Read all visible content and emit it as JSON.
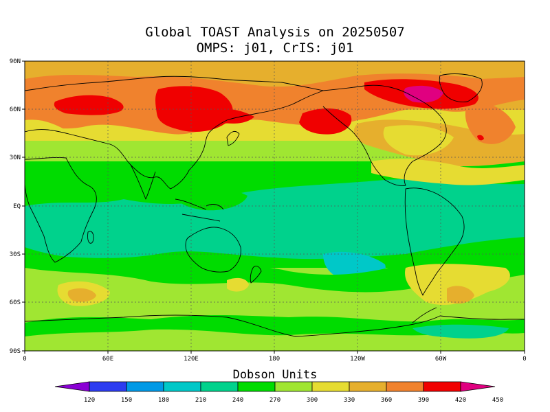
{
  "title": {
    "line1": "Global TOAST Analysis on 20250507",
    "line2": "OMPS: j01, CrIS: j01"
  },
  "axes": {
    "lat_labels": [
      "90N",
      "60N",
      "30N",
      "EQ",
      "30S",
      "60S",
      "90S"
    ],
    "lon_labels": [
      "0",
      "60E",
      "120E",
      "180",
      "120W",
      "60W",
      "0"
    ]
  },
  "colorbar": {
    "title": "Dobson Units",
    "tick_labels": [
      "120",
      "150",
      "180",
      "210",
      "240",
      "270",
      "300",
      "330",
      "360",
      "390",
      "420",
      "450"
    ],
    "colors": [
      "#8a00d4",
      "#2c3cf0",
      "#0099e6",
      "#00c8c8",
      "#00d28c",
      "#00dc00",
      "#a0e632",
      "#e6dc32",
      "#e6af2d",
      "#f0822d",
      "#f00000",
      "#e00080"
    ]
  },
  "ozone_levels": {
    "low_cyan": "#00c8c8",
    "teal": "#00d28c",
    "green": "#00dc00",
    "lime": "#a0e632",
    "yellow": "#e6dc32",
    "gold": "#e6af2d",
    "orange": "#f0822d",
    "red": "#f00000",
    "magenta": "#e00080"
  }
}
